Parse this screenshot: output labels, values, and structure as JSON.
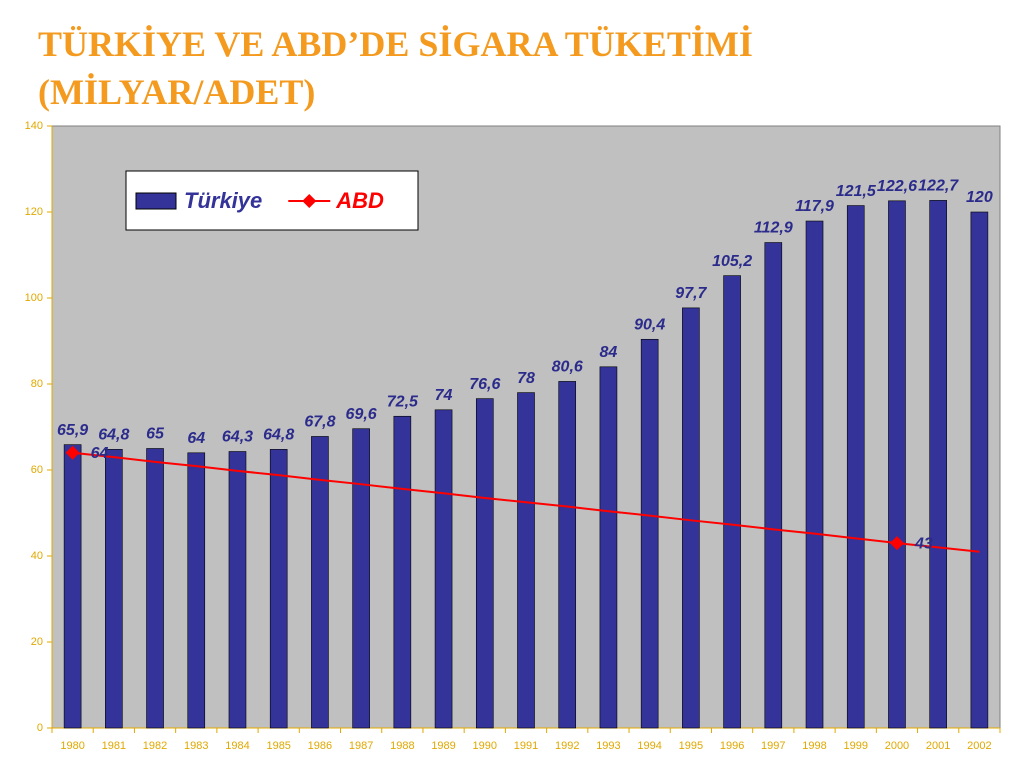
{
  "chart_data": {
    "type": "bar",
    "title": "TÜRKİYE VE ABD’DE SİGARA TÜKETİMİ",
    "subtitle": "(MİLYAR/ADET)",
    "categories": [
      "1980",
      "1981",
      "1982",
      "1983",
      "1984",
      "1985",
      "1986",
      "1987",
      "1988",
      "1989",
      "1990",
      "1991",
      "1992",
      "1993",
      "1994",
      "1995",
      "1996",
      "1997",
      "1998",
      "1999",
      "2000",
      "2001",
      "2002"
    ],
    "series": [
      {
        "name": "Türkiye",
        "type": "bar",
        "color": "#333399",
        "values": [
          65.9,
          64.8,
          65,
          64,
          64.3,
          64.8,
          67.8,
          69.6,
          72.5,
          74,
          76.6,
          78,
          80.6,
          84,
          90.4,
          97.7,
          105.2,
          112.9,
          117.9,
          121.5,
          122.6,
          122.7,
          120
        ],
        "value_labels": [
          "65,9",
          "64,8",
          "65",
          "64",
          "64,3",
          "64,8",
          "67,8",
          "69,6",
          "72,5",
          "74",
          "76,6",
          "78",
          "80,6",
          "84",
          "90,4",
          "97,7",
          "105,2",
          "112,9",
          "117,9",
          "121,5",
          "122,6",
          "122,7",
          "120"
        ]
      },
      {
        "name": "ABD",
        "type": "line",
        "color": "#ff0000",
        "values": [
          64,
          63.0,
          61.9,
          60.9,
          59.8,
          58.8,
          57.7,
          56.7,
          55.6,
          54.6,
          53.5,
          52.5,
          51.5,
          50.4,
          49.4,
          48.3,
          47.3,
          46.2,
          45.2,
          44.1,
          43,
          42.0,
          41
        ],
        "value_labels": [
          "64",
          null,
          null,
          null,
          null,
          null,
          null,
          null,
          null,
          null,
          null,
          null,
          null,
          null,
          null,
          null,
          null,
          null,
          null,
          null,
          "43",
          null,
          null
        ]
      }
    ],
    "ylim": [
      0,
      140
    ],
    "yticks": [
      0,
      20,
      40,
      60,
      80,
      100,
      120,
      140
    ],
    "legend": "upper left",
    "background": "#c0c0c0"
  }
}
